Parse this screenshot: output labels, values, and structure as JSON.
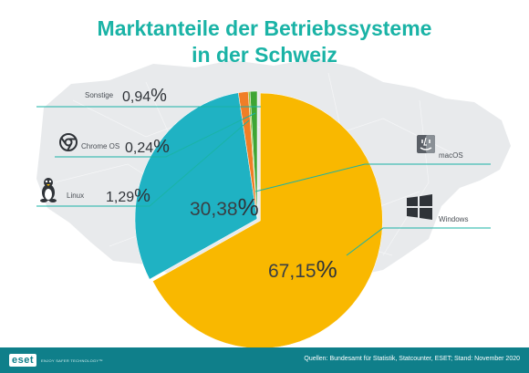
{
  "header": {
    "title_line1": "Marktanteile der Betriebssysteme",
    "title_line2": "in der Schweiz"
  },
  "colors": {
    "title": "#1ab3a6",
    "windows": "#f9b800",
    "macos": "#1fb2c3",
    "linux": "#f07e26",
    "chrome_os": "#9bc23d",
    "sonstige": "#3fa535",
    "footer": "#0f7f8a"
  },
  "chart_data": {
    "type": "pie",
    "title": "Marktanteile der Betriebssysteme in der Schweiz",
    "slices": [
      {
        "label": "Windows",
        "value": 67.15,
        "display": "67,15",
        "icon": "windows-icon"
      },
      {
        "label": "macOS",
        "value": 30.38,
        "display": "30,38",
        "icon": "apple-finder-icon"
      },
      {
        "label": "Linux",
        "value": 1.29,
        "display": "1,29",
        "icon": "tux-penguin-icon"
      },
      {
        "label": "Chrome OS",
        "value": 0.24,
        "display": "0,24",
        "icon": "chrome-icon"
      },
      {
        "label": "Sonstige",
        "value": 0.94,
        "display": "0,94",
        "icon": ""
      }
    ],
    "unit": "%",
    "legend": "callouts"
  },
  "footer": {
    "brand": "eset",
    "claim": "ENJOY SAFER TECHNOLOGY™",
    "sources": "Quellen: Bundesamt für Statistik, Statcounter, ESET; Stand: November 2020"
  }
}
